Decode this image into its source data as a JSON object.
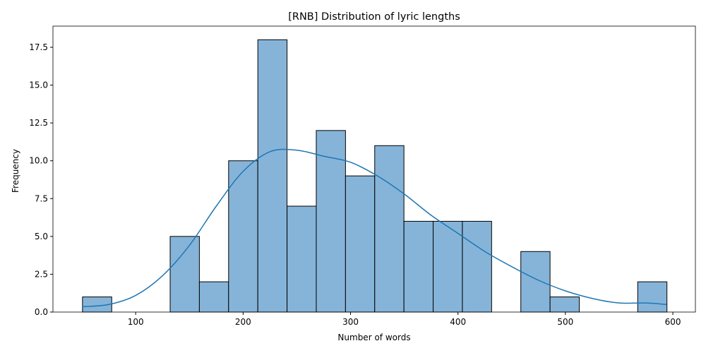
{
  "chart_data": {
    "type": "bar",
    "title": "[RNB] Distribution of lyric lengths",
    "xlabel": "Number of words",
    "ylabel": "Frequency",
    "xlim": [
      23,
      621
    ],
    "ylim": [
      0,
      18.9
    ],
    "xticks": [
      100,
      200,
      300,
      400,
      500,
      600
    ],
    "yticks": [
      0.0,
      2.5,
      5.0,
      7.5,
      10.0,
      12.5,
      15.0,
      17.5
    ],
    "ytick_labels": [
      "0.0",
      "2.5",
      "5.0",
      "7.5",
      "10.0",
      "12.5",
      "15.0",
      "17.5"
    ],
    "bin_edges": [
      50.5,
      77.7,
      104.9,
      132.1,
      159.3,
      186.5,
      213.7,
      240.9,
      268.1,
      295.3,
      322.5,
      349.7,
      376.9,
      404.1,
      431.3,
      458.5,
      485.7,
      512.9,
      540.1,
      567.3,
      594.5
    ],
    "values": [
      1,
      0,
      0,
      5,
      2,
      10,
      18,
      7,
      12,
      9,
      11,
      6,
      6,
      6,
      0,
      4,
      1,
      0,
      0,
      2
    ],
    "kde": {
      "x": [
        50,
        75,
        100,
        125,
        150,
        175,
        200,
        225,
        250,
        275,
        300,
        325,
        350,
        375,
        400,
        425,
        450,
        475,
        500,
        525,
        550,
        575,
        594
      ],
      "y": [
        0.35,
        0.5,
        1.1,
        2.4,
        4.4,
        7.0,
        9.3,
        10.6,
        10.7,
        10.3,
        9.9,
        9.0,
        7.8,
        6.4,
        5.2,
        4.0,
        3.0,
        2.1,
        1.4,
        0.9,
        0.6,
        0.6,
        0.5
      ]
    },
    "grid": false,
    "legend": "none",
    "colors": {
      "bar_fill": "#86b4d9",
      "bar_edge": "#000000",
      "kde_line": "#1f77b4",
      "axis": "#000000"
    }
  }
}
